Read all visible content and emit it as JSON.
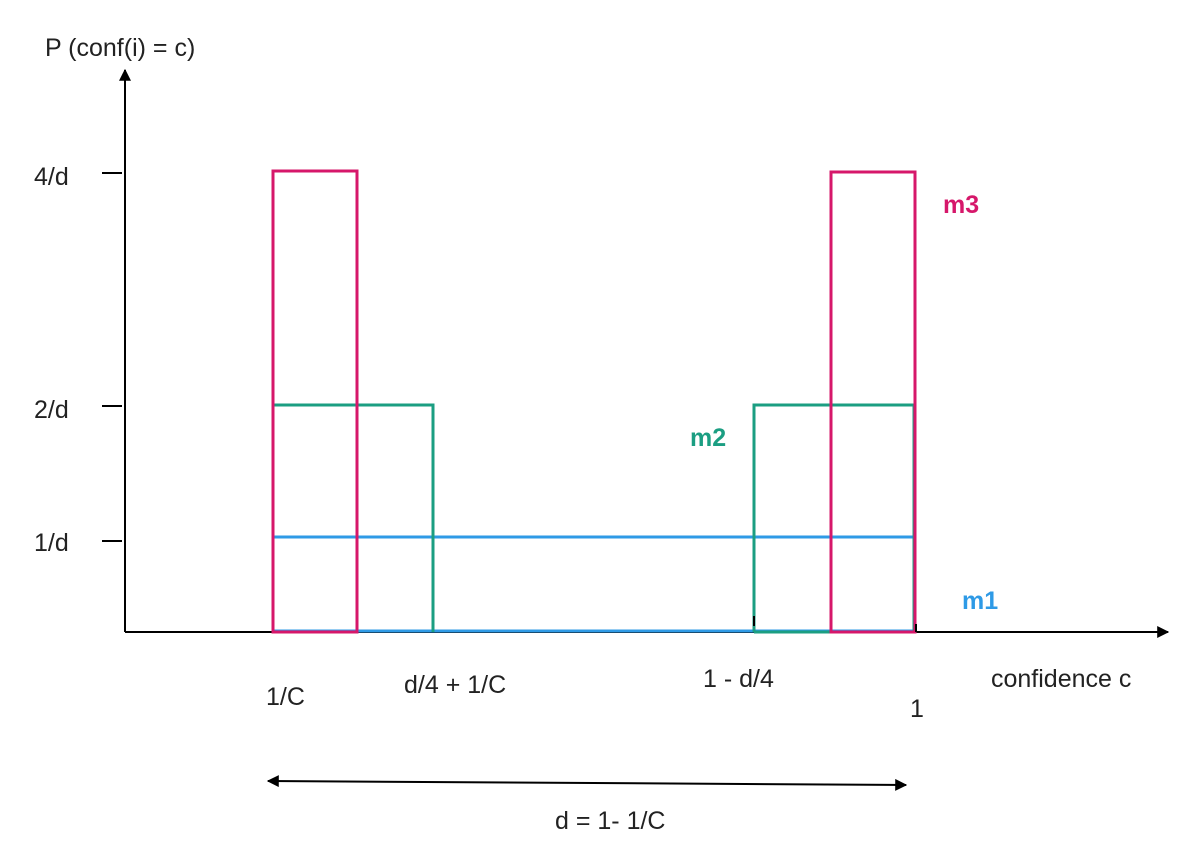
{
  "axes": {
    "y_title": "P (conf(i) = c)",
    "x_title": "confidence c",
    "y_ticks": [
      "4/d",
      "2/d",
      "1/d"
    ],
    "x_ticks": [
      "1/C",
      "d/4 + 1/C",
      "1 - d/4",
      "1"
    ]
  },
  "series": [
    {
      "name": "m1",
      "color": "#2e9ae6"
    },
    {
      "name": "m2",
      "color": "#1b9e82"
    },
    {
      "name": "m3",
      "color": "#d6176a"
    }
  ],
  "span": {
    "label": "d = 1- 1/C"
  }
}
